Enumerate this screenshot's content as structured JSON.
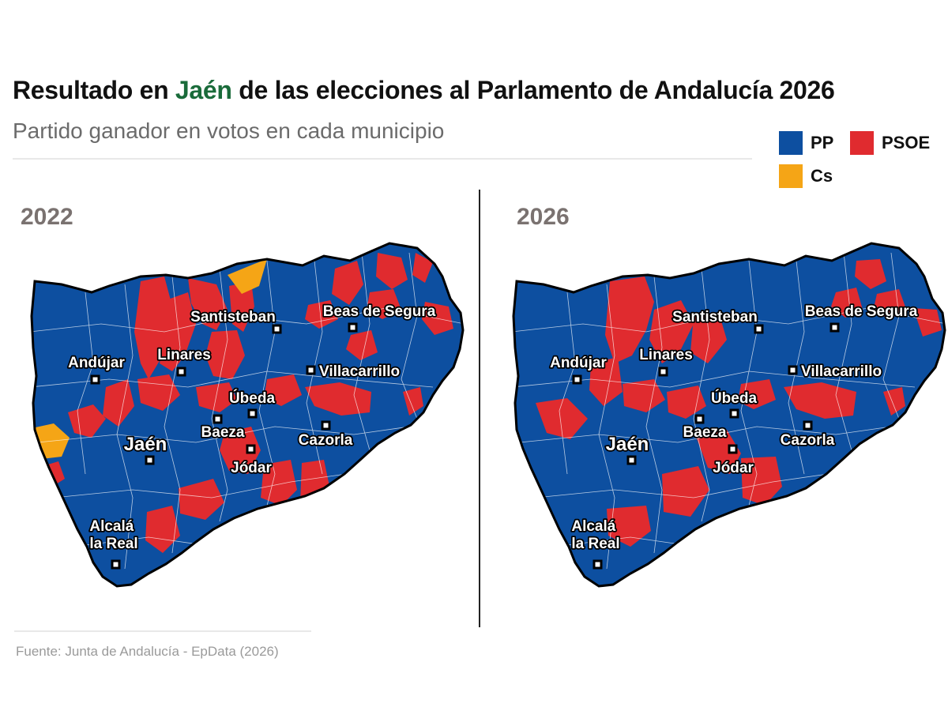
{
  "title": {
    "prefix": "Resultado en ",
    "highlight": "Jaén",
    "suffix": " de las elecciones al Parlamento de Andalucía 2026"
  },
  "subtitle": "Partido ganador en votos en cada municipio",
  "legend": [
    {
      "label": "PP",
      "color": "#0d4fa0"
    },
    {
      "label": "PSOE",
      "color": "#e02b2f"
    },
    {
      "label": "Cs",
      "color": "#f5a516"
    }
  ],
  "colors": {
    "pp": "#0d4fa0",
    "psoe": "#e02b2f",
    "cs": "#f5a516",
    "title_highlight": "#1a6b3a"
  },
  "maps": [
    {
      "year": "2022",
      "cities": [
        "Santisteban",
        "Beas de Segura",
        "Andújar",
        "Linares",
        "Villacarrillo",
        "Úbeda",
        "Baeza",
        "Jaén",
        "Cazorla",
        "Jódar",
        "Alcalá la Real"
      ]
    },
    {
      "year": "2026",
      "cities": [
        "Santisteban",
        "Beas de Segura",
        "Andújar",
        "Linares",
        "Villacarrillo",
        "Úbeda",
        "Baeza",
        "Jaén",
        "Cazorla",
        "Jódar",
        "Alcalá la Real"
      ]
    }
  ],
  "source": "Fuente: Junta de Andalucía - EpData (2026)"
}
